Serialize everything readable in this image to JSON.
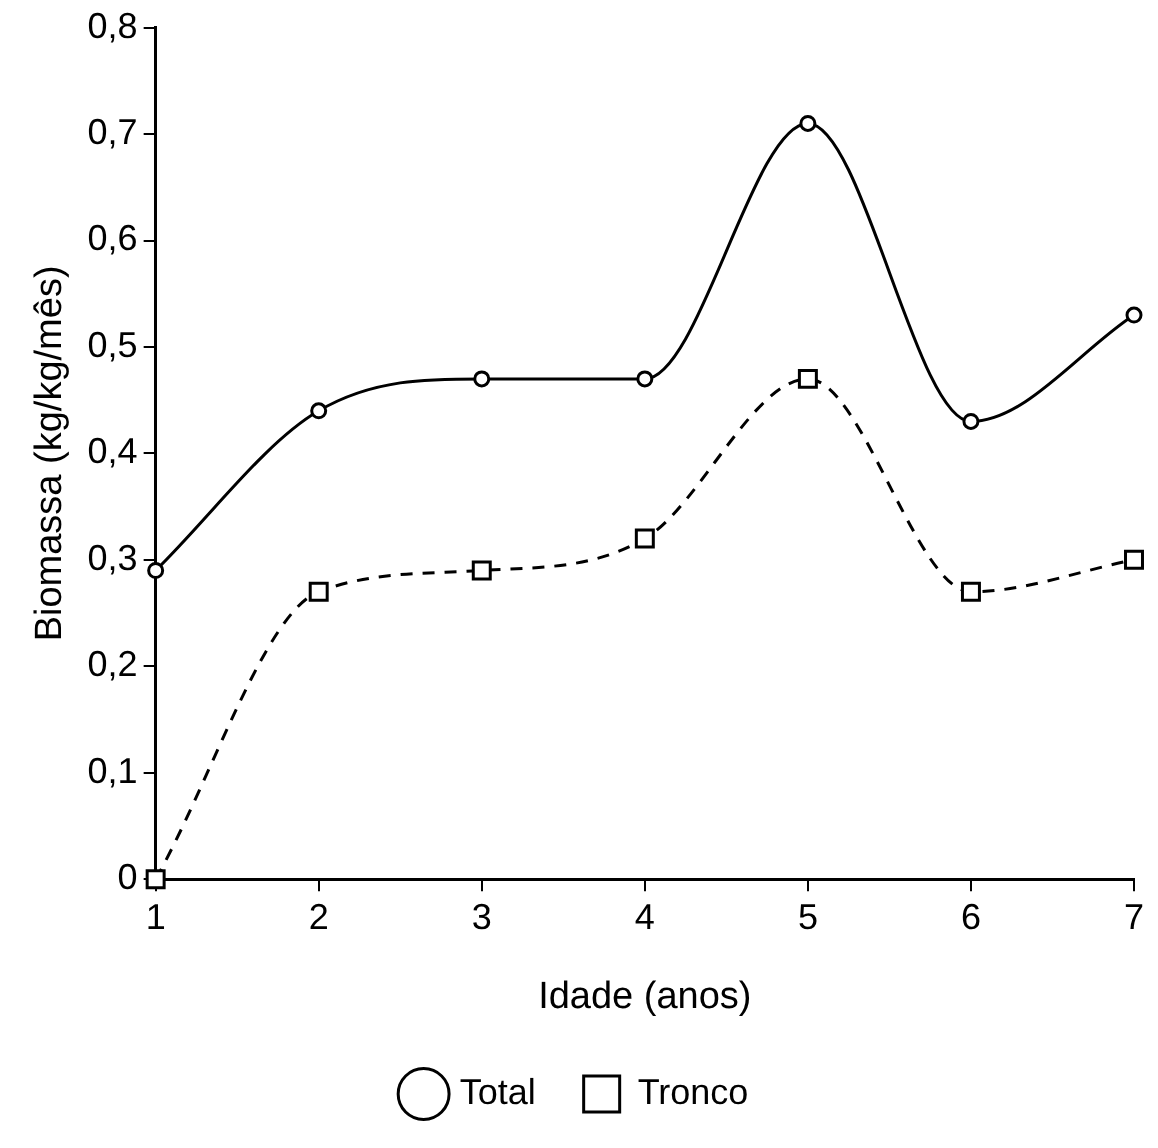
{
  "chart_data": {
    "type": "line",
    "xlabel": "Idade (anos)",
    "ylabel": "Biomassa (kg/kg/mês)",
    "x": [
      1,
      2,
      3,
      4,
      5,
      6,
      7
    ],
    "series": [
      {
        "name": "Total",
        "color": "#000000",
        "marker": "circle",
        "line_style": "solid",
        "values": [
          0.29,
          0.44,
          0.47,
          0.47,
          0.71,
          0.43,
          0.53
        ]
      },
      {
        "name": "Tronco",
        "color": "#000000",
        "marker": "square",
        "line_style": "dashed",
        "values": [
          0,
          0.27,
          0.29,
          0.32,
          0.47,
          0.27,
          0.3
        ]
      }
    ],
    "xlim": [
      1,
      7
    ],
    "xticks": [
      1,
      2,
      3,
      4,
      5,
      6,
      7
    ],
    "ylim": [
      0,
      0.8
    ],
    "yticks": [
      {
        "value": 0,
        "label": "0"
      },
      {
        "value": 0.1,
        "label": "0,1"
      },
      {
        "value": 0.2,
        "label": "0,2"
      },
      {
        "value": 0.3,
        "label": "0,3"
      },
      {
        "value": 0.4,
        "label": "0,4"
      },
      {
        "value": 0.5,
        "label": "0,5"
      },
      {
        "value": 0.6,
        "label": "0,6"
      },
      {
        "value": 0.7,
        "label": "0,7"
      },
      {
        "value": 0.8,
        "label": "0,8"
      }
    ],
    "grid": false,
    "legend": "bottom"
  }
}
